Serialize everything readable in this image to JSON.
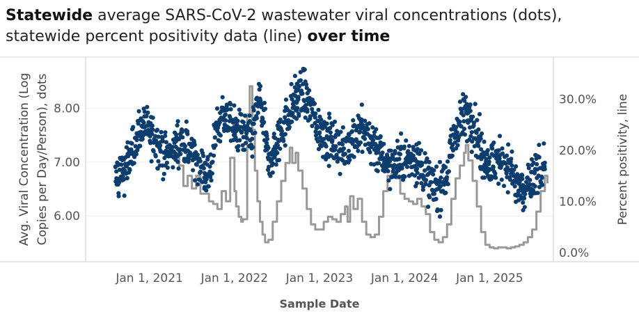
{
  "title": {
    "part1_bold": "Statewide",
    "part2": " average SARS-CoV-2 wastewater viral concentrations (dots),",
    "part3": "statewide percent positivity data (line) ",
    "part4_bold": "over time"
  },
  "chart_data": {
    "type": "scatter+line",
    "xlabel": "Sample Date",
    "ylabel_left": [
      "Avg. Viral Concentration (Log",
      "Copies per Day/Person), dots"
    ],
    "ylabel_right": "Percent positivity, line",
    "x_ticks": [
      {
        "label": "Jan 1, 2021",
        "t": 2021.0
      },
      {
        "label": "Jan 1, 2022",
        "t": 2022.0
      },
      {
        "label": "Jan 1, 2023",
        "t": 2023.0
      },
      {
        "label": "Jan 1, 2024",
        "t": 2024.0
      },
      {
        "label": "Jan 1, 2025",
        "t": 2025.0
      }
    ],
    "x_range": [
      2020.25,
      2025.75
    ],
    "y_left_ticks": [
      "6.00",
      "7.00",
      "8.00"
    ],
    "y_left_tick_values": [
      6.0,
      7.0,
      8.0
    ],
    "y_left_range": [
      5.15,
      8.95
    ],
    "y_right_ticks": [
      "0.0%",
      "10.0%",
      "20.0%",
      "30.0%"
    ],
    "y_right_tick_values": [
      0,
      10,
      20,
      30
    ],
    "y_right_range": [
      -1.8,
      38.2
    ],
    "dot_color": "#0b3d6e",
    "line_color": "#999999",
    "series_dots_trend": [
      [
        2020.6,
        6.7
      ],
      [
        2020.7,
        6.9
      ],
      [
        2020.8,
        7.2
      ],
      [
        2020.9,
        7.6
      ],
      [
        2021.0,
        7.6
      ],
      [
        2021.1,
        7.3
      ],
      [
        2021.2,
        7.1
      ],
      [
        2021.3,
        7.3
      ],
      [
        2021.4,
        7.4
      ],
      [
        2021.5,
        7.2
      ],
      [
        2021.6,
        6.9
      ],
      [
        2021.7,
        6.7
      ],
      [
        2021.8,
        7.7
      ],
      [
        2021.9,
        7.9
      ],
      [
        2022.0,
        7.6
      ],
      [
        2022.1,
        7.5
      ],
      [
        2022.2,
        7.4
      ],
      [
        2022.25,
        7.9
      ],
      [
        2022.3,
        8.2
      ],
      [
        2022.4,
        7.0
      ],
      [
        2022.5,
        7.3
      ],
      [
        2022.6,
        7.8
      ],
      [
        2022.7,
        8.1
      ],
      [
        2022.8,
        8.3
      ],
      [
        2022.9,
        8.0
      ],
      [
        2023.0,
        7.6
      ],
      [
        2023.1,
        7.4
      ],
      [
        2023.2,
        7.3
      ],
      [
        2023.3,
        7.2
      ],
      [
        2023.4,
        7.5
      ],
      [
        2023.5,
        7.6
      ],
      [
        2023.6,
        7.4
      ],
      [
        2023.7,
        7.2
      ],
      [
        2023.8,
        7.0
      ],
      [
        2023.9,
        7.0
      ],
      [
        2024.0,
        7.0
      ],
      [
        2024.1,
        7.1
      ],
      [
        2024.2,
        6.9
      ],
      [
        2024.3,
        6.6
      ],
      [
        2024.4,
        6.5
      ],
      [
        2024.5,
        6.8
      ],
      [
        2024.6,
        7.6
      ],
      [
        2024.7,
        7.9
      ],
      [
        2024.8,
        7.8
      ],
      [
        2024.9,
        7.2
      ],
      [
        2025.0,
        7.0
      ],
      [
        2025.1,
        7.0
      ],
      [
        2025.2,
        7.0
      ],
      [
        2025.3,
        6.6
      ],
      [
        2025.4,
        6.4
      ],
      [
        2025.5,
        6.7
      ],
      [
        2025.6,
        6.8
      ],
      [
        2025.65,
        7.1
      ]
    ],
    "series_dots_spread": 0.22,
    "series_line": [
      [
        2021.3,
        19.5
      ],
      [
        2021.35,
        17.0
      ],
      [
        2021.4,
        13.0
      ],
      [
        2021.45,
        15.0
      ],
      [
        2021.5,
        12.5
      ],
      [
        2021.55,
        15.0
      ],
      [
        2021.6,
        11.5
      ],
      [
        2021.7,
        10.0
      ],
      [
        2021.75,
        9.5
      ],
      [
        2021.8,
        8.5
      ],
      [
        2021.85,
        12.0
      ],
      [
        2021.9,
        10.0
      ],
      [
        2021.95,
        18.5
      ],
      [
        2022.0,
        12.0
      ],
      [
        2022.02,
        9.0
      ],
      [
        2022.05,
        7.0
      ],
      [
        2022.08,
        6.0
      ],
      [
        2022.1,
        6.5
      ],
      [
        2022.15,
        27.0
      ],
      [
        2022.18,
        32.5
      ],
      [
        2022.21,
        24.0
      ],
      [
        2022.24,
        16.0
      ],
      [
        2022.27,
        10.0
      ],
      [
        2022.3,
        6.0
      ],
      [
        2022.33,
        3.5
      ],
      [
        2022.36,
        2.0
      ],
      [
        2022.4,
        2.5
      ],
      [
        2022.45,
        6.0
      ],
      [
        2022.5,
        10.0
      ],
      [
        2022.55,
        14.0
      ],
      [
        2022.6,
        17.5
      ],
      [
        2022.65,
        20.5
      ],
      [
        2022.68,
        17.5
      ],
      [
        2022.72,
        19.5
      ],
      [
        2022.75,
        16.0
      ],
      [
        2022.8,
        12.5
      ],
      [
        2022.85,
        8.5
      ],
      [
        2022.9,
        5.5
      ],
      [
        2022.95,
        4.5
      ],
      [
        2023.0,
        4.5
      ],
      [
        2023.05,
        6.0
      ],
      [
        2023.1,
        7.0
      ],
      [
        2023.15,
        6.5
      ],
      [
        2023.2,
        6.0
      ],
      [
        2023.25,
        7.5
      ],
      [
        2023.3,
        9.0
      ],
      [
        2023.33,
        6.0
      ],
      [
        2023.36,
        11.0
      ],
      [
        2023.4,
        8.5
      ],
      [
        2023.45,
        10.5
      ],
      [
        2023.5,
        6.0
      ],
      [
        2023.55,
        3.5
      ],
      [
        2023.6,
        3.0
      ],
      [
        2023.65,
        3.5
      ],
      [
        2023.7,
        7.0
      ],
      [
        2023.75,
        12.0
      ],
      [
        2023.8,
        15.0
      ],
      [
        2023.85,
        15.5
      ],
      [
        2023.9,
        14.5
      ],
      [
        2023.95,
        11.5
      ],
      [
        2024.0,
        10.5
      ],
      [
        2024.05,
        10.0
      ],
      [
        2024.1,
        9.5
      ],
      [
        2024.15,
        10.5
      ],
      [
        2024.2,
        9.0
      ],
      [
        2024.25,
        7.5
      ],
      [
        2024.3,
        4.0
      ],
      [
        2024.35,
        2.5
      ],
      [
        2024.4,
        2.0
      ],
      [
        2024.45,
        3.0
      ],
      [
        2024.5,
        5.5
      ],
      [
        2024.55,
        10.5
      ],
      [
        2024.6,
        14.5
      ],
      [
        2024.65,
        17.0
      ],
      [
        2024.7,
        19.5
      ],
      [
        2024.72,
        21.0
      ],
      [
        2024.75,
        18.0
      ],
      [
        2024.8,
        14.0
      ],
      [
        2024.85,
        9.0
      ],
      [
        2024.9,
        4.0
      ],
      [
        2024.95,
        1.5
      ],
      [
        2025.0,
        1.0
      ],
      [
        2025.05,
        0.8
      ],
      [
        2025.1,
        1.0
      ],
      [
        2025.15,
        1.0
      ],
      [
        2025.2,
        0.8
      ],
      [
        2025.25,
        1.0
      ],
      [
        2025.3,
        1.2
      ],
      [
        2025.35,
        1.5
      ],
      [
        2025.4,
        2.0
      ],
      [
        2025.45,
        3.0
      ],
      [
        2025.5,
        4.5
      ],
      [
        2025.55,
        8.0
      ],
      [
        2025.6,
        12.0
      ],
      [
        2025.65,
        15.0
      ],
      [
        2025.68,
        13.5
      ]
    ]
  }
}
